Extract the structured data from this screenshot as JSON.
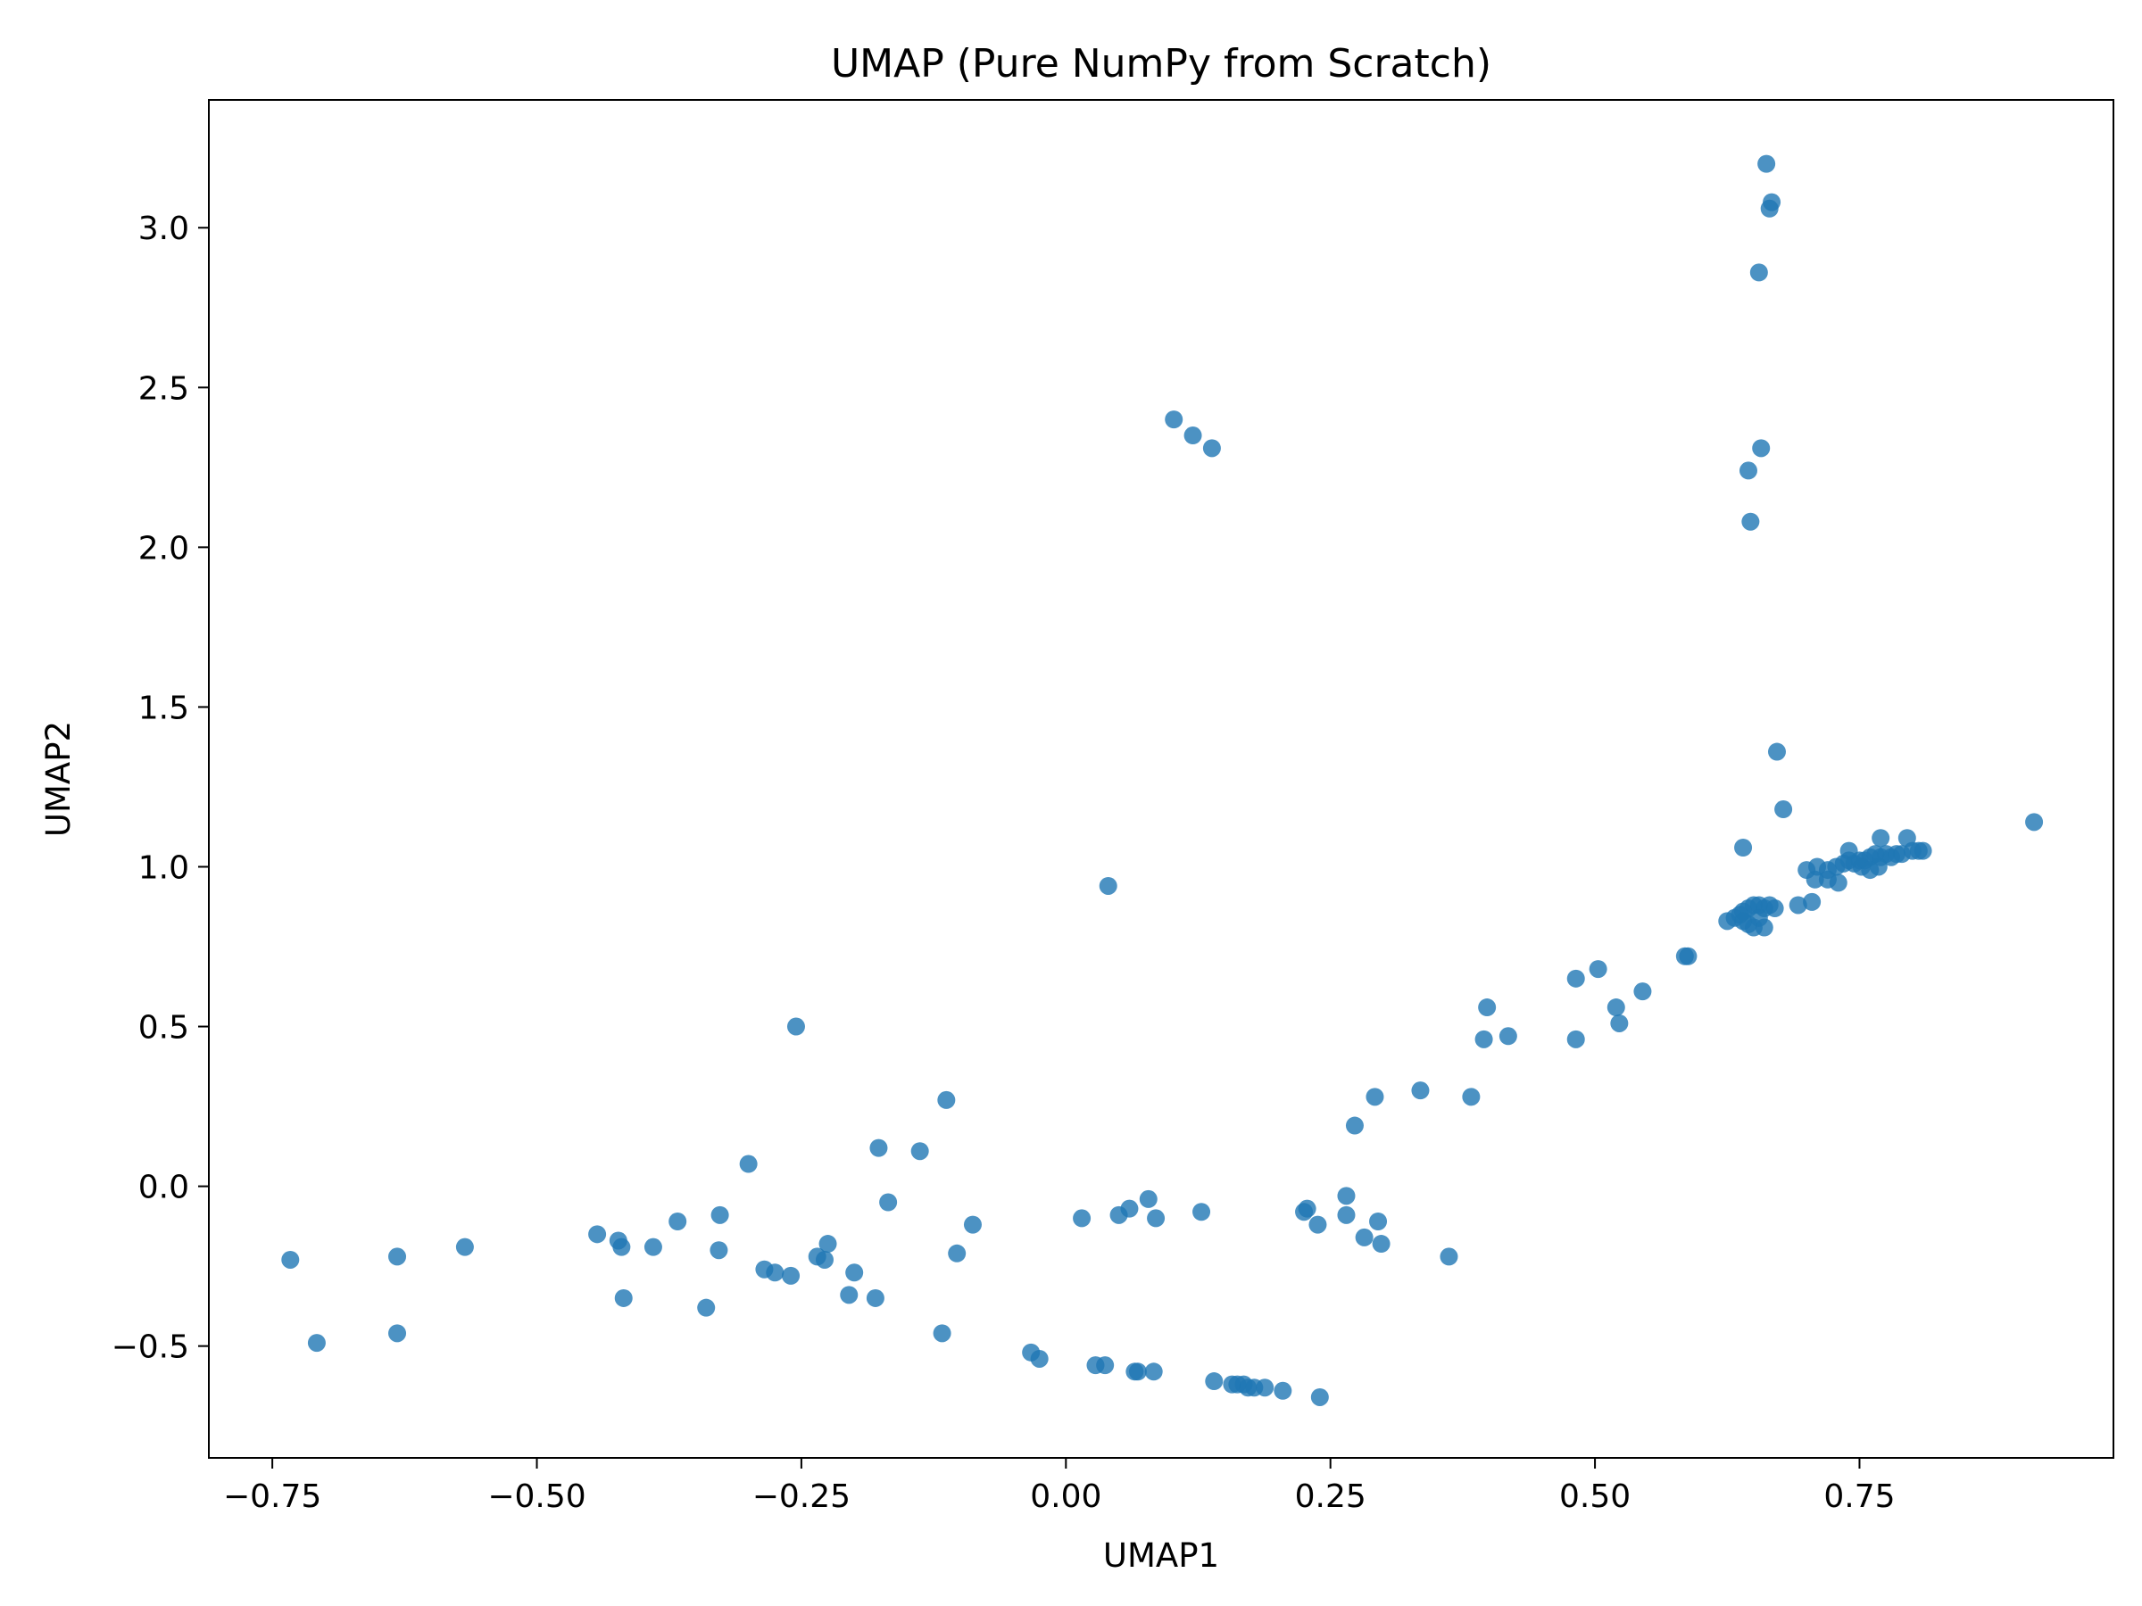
{
  "chart_data": {
    "type": "scatter",
    "title": "UMAP (Pure NumPy from Scratch)",
    "xlabel": "UMAP1",
    "ylabel": "UMAP2",
    "xlim": [
      -0.81,
      0.99
    ],
    "ylim": [
      -0.85,
      3.4
    ],
    "x_ticks": [
      -0.75,
      -0.5,
      -0.25,
      0.0,
      0.25,
      0.5,
      0.75
    ],
    "x_tick_labels": [
      "−0.75",
      "−0.50",
      "−0.25",
      "0.00",
      "0.25",
      "0.50",
      "0.75"
    ],
    "y_ticks": [
      -0.5,
      0.0,
      0.5,
      1.0,
      1.5,
      2.0,
      2.5,
      3.0
    ],
    "y_tick_labels": [
      "−0.5",
      "0.0",
      "0.5",
      "1.0",
      "1.5",
      "2.0",
      "2.5",
      "3.0"
    ],
    "grid": false,
    "legend": "none",
    "marker_color": "#1f77b4",
    "marker_opacity": 0.8,
    "series": [
      {
        "points": [
          [
            0.662,
            3.2
          ],
          [
            0.667,
            3.08
          ],
          [
            0.665,
            3.06
          ],
          [
            0.655,
            2.86
          ],
          [
            0.657,
            2.31
          ],
          [
            0.645,
            2.24
          ],
          [
            0.647,
            2.08
          ],
          [
            0.102,
            2.4
          ],
          [
            0.12,
            2.35
          ],
          [
            0.138,
            2.31
          ],
          [
            0.672,
            1.36
          ],
          [
            0.678,
            1.18
          ],
          [
            0.915,
            1.14
          ],
          [
            0.64,
            1.06
          ],
          [
            0.74,
            1.05
          ],
          [
            0.77,
            1.09
          ],
          [
            0.795,
            1.09
          ],
          [
            0.81,
            1.05
          ],
          [
            0.806,
            1.05
          ],
          [
            0.8,
            1.05
          ],
          [
            0.79,
            1.04
          ],
          [
            0.785,
            1.04
          ],
          [
            0.78,
            1.03
          ],
          [
            0.775,
            1.04
          ],
          [
            0.77,
            1.03
          ],
          [
            0.765,
            1.04
          ],
          [
            0.76,
            1.03
          ],
          [
            0.755,
            1.02
          ],
          [
            0.75,
            1.02
          ],
          [
            0.745,
            1.01
          ],
          [
            0.74,
            1.02
          ],
          [
            0.735,
            1.01
          ],
          [
            0.728,
            1.0
          ],
          [
            0.72,
            0.99
          ],
          [
            0.71,
            1.0
          ],
          [
            0.7,
            0.99
          ],
          [
            0.768,
            1.0
          ],
          [
            0.752,
            1.0
          ],
          [
            0.76,
            0.99
          ],
          [
            0.73,
            0.95
          ],
          [
            0.72,
            0.96
          ],
          [
            0.708,
            0.96
          ],
          [
            0.705,
            0.89
          ],
          [
            0.692,
            0.88
          ],
          [
            0.655,
            0.88
          ],
          [
            0.65,
            0.88
          ],
          [
            0.645,
            0.87
          ],
          [
            0.64,
            0.86
          ],
          [
            0.637,
            0.85
          ],
          [
            0.632,
            0.84
          ],
          [
            0.66,
            0.87
          ],
          [
            0.665,
            0.88
          ],
          [
            0.67,
            0.87
          ],
          [
            0.625,
            0.83
          ],
          [
            0.66,
            0.81
          ],
          [
            0.65,
            0.81
          ],
          [
            0.645,
            0.82
          ],
          [
            0.64,
            0.83
          ],
          [
            0.655,
            0.84
          ],
          [
            0.04,
            0.94
          ],
          [
            0.585,
            0.72
          ],
          [
            0.588,
            0.72
          ],
          [
            0.503,
            0.68
          ],
          [
            0.482,
            0.65
          ],
          [
            0.545,
            0.61
          ],
          [
            0.398,
            0.56
          ],
          [
            0.52,
            0.56
          ],
          [
            0.523,
            0.51
          ],
          [
            0.395,
            0.46
          ],
          [
            0.418,
            0.47
          ],
          [
            0.482,
            0.46
          ],
          [
            -0.255,
            0.5
          ],
          [
            0.335,
            0.3
          ],
          [
            0.292,
            0.28
          ],
          [
            0.383,
            0.28
          ],
          [
            -0.113,
            0.27
          ],
          [
            0.273,
            0.19
          ],
          [
            -0.177,
            0.12
          ],
          [
            -0.138,
            0.11
          ],
          [
            -0.3,
            0.07
          ],
          [
            0.265,
            -0.03
          ],
          [
            0.078,
            -0.04
          ],
          [
            0.06,
            -0.07
          ],
          [
            0.228,
            -0.07
          ],
          [
            -0.168,
            -0.05
          ],
          [
            0.128,
            -0.08
          ],
          [
            0.225,
            -0.08
          ],
          [
            0.265,
            -0.09
          ],
          [
            0.05,
            -0.09
          ],
          [
            0.085,
            -0.1
          ],
          [
            0.015,
            -0.1
          ],
          [
            0.295,
            -0.11
          ],
          [
            -0.327,
            -0.09
          ],
          [
            -0.367,
            -0.11
          ],
          [
            -0.088,
            -0.12
          ],
          [
            0.238,
            -0.12
          ],
          [
            -0.443,
            -0.15
          ],
          [
            0.282,
            -0.16
          ],
          [
            0.298,
            -0.18
          ],
          [
            -0.423,
            -0.17
          ],
          [
            -0.42,
            -0.19
          ],
          [
            -0.39,
            -0.19
          ],
          [
            -0.568,
            -0.19
          ],
          [
            -0.328,
            -0.2
          ],
          [
            -0.103,
            -0.21
          ],
          [
            -0.225,
            -0.18
          ],
          [
            -0.235,
            -0.22
          ],
          [
            -0.228,
            -0.23
          ],
          [
            -0.632,
            -0.22
          ],
          [
            -0.733,
            -0.23
          ],
          [
            0.362,
            -0.22
          ],
          [
            -0.285,
            -0.26
          ],
          [
            -0.275,
            -0.27
          ],
          [
            -0.2,
            -0.27
          ],
          [
            -0.26,
            -0.28
          ],
          [
            -0.205,
            -0.34
          ],
          [
            -0.418,
            -0.35
          ],
          [
            -0.18,
            -0.35
          ],
          [
            -0.34,
            -0.38
          ],
          [
            -0.632,
            -0.46
          ],
          [
            -0.117,
            -0.46
          ],
          [
            -0.708,
            -0.49
          ],
          [
            -0.033,
            -0.52
          ],
          [
            -0.025,
            -0.54
          ],
          [
            0.028,
            -0.56
          ],
          [
            0.037,
            -0.56
          ],
          [
            0.068,
            -0.58
          ],
          [
            0.065,
            -0.58
          ],
          [
            0.083,
            -0.58
          ],
          [
            0.14,
            -0.61
          ],
          [
            0.157,
            -0.62
          ],
          [
            0.162,
            -0.62
          ],
          [
            0.168,
            -0.62
          ],
          [
            0.172,
            -0.63
          ],
          [
            0.178,
            -0.63
          ],
          [
            0.188,
            -0.63
          ],
          [
            0.205,
            -0.64
          ],
          [
            0.24,
            -0.66
          ]
        ]
      }
    ]
  }
}
